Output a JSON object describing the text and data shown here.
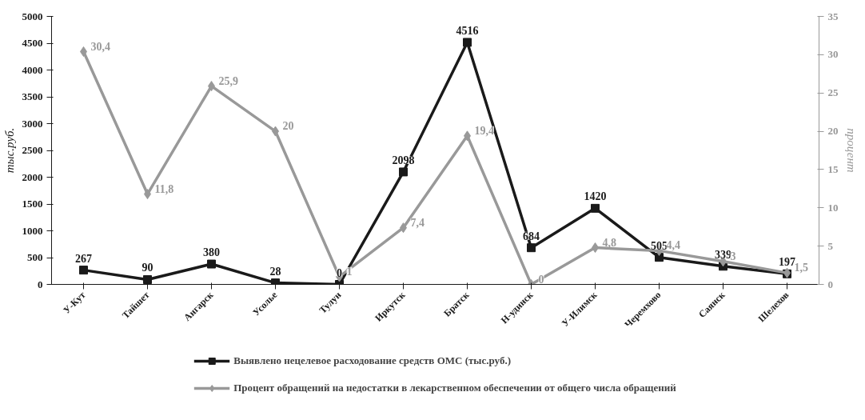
{
  "chart_data": {
    "type": "line",
    "ylabel": "тыс.руб.",
    "y2label": "процент",
    "categories": [
      "У-Кут",
      "Тайшет",
      "Ангарск",
      "Усолье",
      "Тулун",
      "Иркутск",
      "Братск",
      "Н-удинск",
      "У-Илимск",
      "Черемхово",
      "Саянск",
      "Шелехов"
    ],
    "series": [
      {
        "name": "Выявлено нецелевое расходование средств ОМС (тыс.руб.)",
        "color": "#1a1a1a",
        "marker": "square",
        "values": [
          267,
          90,
          380,
          28,
          0,
          2098,
          4516,
          684,
          1420,
          505,
          339,
          197
        ],
        "value_labels": [
          "267",
          "90",
          "380",
          "28",
          "0",
          "2098",
          "4516",
          "684",
          "1420",
          "505",
          "339",
          "197"
        ]
      },
      {
        "name": "Процент обращений на недостатки в лекарственном обеспечении от общего числа обращений",
        "color": "#999999",
        "marker": "diamond",
        "axis": "y2",
        "values": [
          30.4,
          11.8,
          25.9,
          20,
          1,
          7.4,
          19.4,
          0,
          4.8,
          4.4,
          3,
          1.5
        ],
        "value_labels": [
          "30,4",
          "11,8",
          "25,9",
          "20",
          "1",
          "7,4",
          "19,4",
          "0",
          "4,8",
          "4,4",
          "3",
          "1,5"
        ]
      }
    ],
    "ylim": [
      0,
      5000
    ],
    "yticks": [
      0,
      500,
      1000,
      1500,
      2000,
      2500,
      3000,
      3500,
      4000,
      4500,
      5000
    ],
    "y2lim": [
      0,
      35
    ],
    "y2ticks": [
      0,
      5,
      10,
      15,
      20,
      25,
      30,
      35
    ],
    "grid": false,
    "legend": "bottom",
    "line_style": "solid"
  }
}
